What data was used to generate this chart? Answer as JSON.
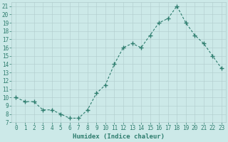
{
  "xlabel": "Humidex (Indice chaleur)",
  "x": [
    0,
    1,
    2,
    3,
    4,
    5,
    6,
    7,
    8,
    9,
    10,
    11,
    12,
    13,
    14,
    15,
    16,
    17,
    18,
    19,
    20,
    21,
    22,
    23
  ],
  "y": [
    10,
    9.5,
    9.5,
    8.5,
    8.5,
    8.0,
    7.5,
    7.5,
    8.5,
    10.5,
    11.5,
    14.0,
    16.0,
    16.5,
    16.0,
    17.5,
    19.0,
    19.5,
    21.0,
    19.0,
    17.5,
    16.5,
    15.0,
    13.5
  ],
  "line_color": "#2e7d6e",
  "marker": "+",
  "marker_size": 4,
  "marker_lw": 1.0,
  "line_width": 0.8,
  "background_color": "#cce9e8",
  "grid_color": "#b0cccc",
  "tick_color": "#2e7d6e",
  "label_color": "#2e7d6e",
  "ylim": [
    7,
    21.5
  ],
  "xlim": [
    -0.5,
    23.5
  ],
  "yticks": [
    7,
    8,
    9,
    10,
    11,
    12,
    13,
    14,
    15,
    16,
    17,
    18,
    19,
    20,
    21
  ],
  "xticks": [
    0,
    1,
    2,
    3,
    4,
    5,
    6,
    7,
    8,
    9,
    10,
    11,
    12,
    13,
    14,
    15,
    16,
    17,
    18,
    19,
    20,
    21,
    22,
    23
  ],
  "xlabel_fontsize": 6.5,
  "tick_fontsize": 5.5
}
